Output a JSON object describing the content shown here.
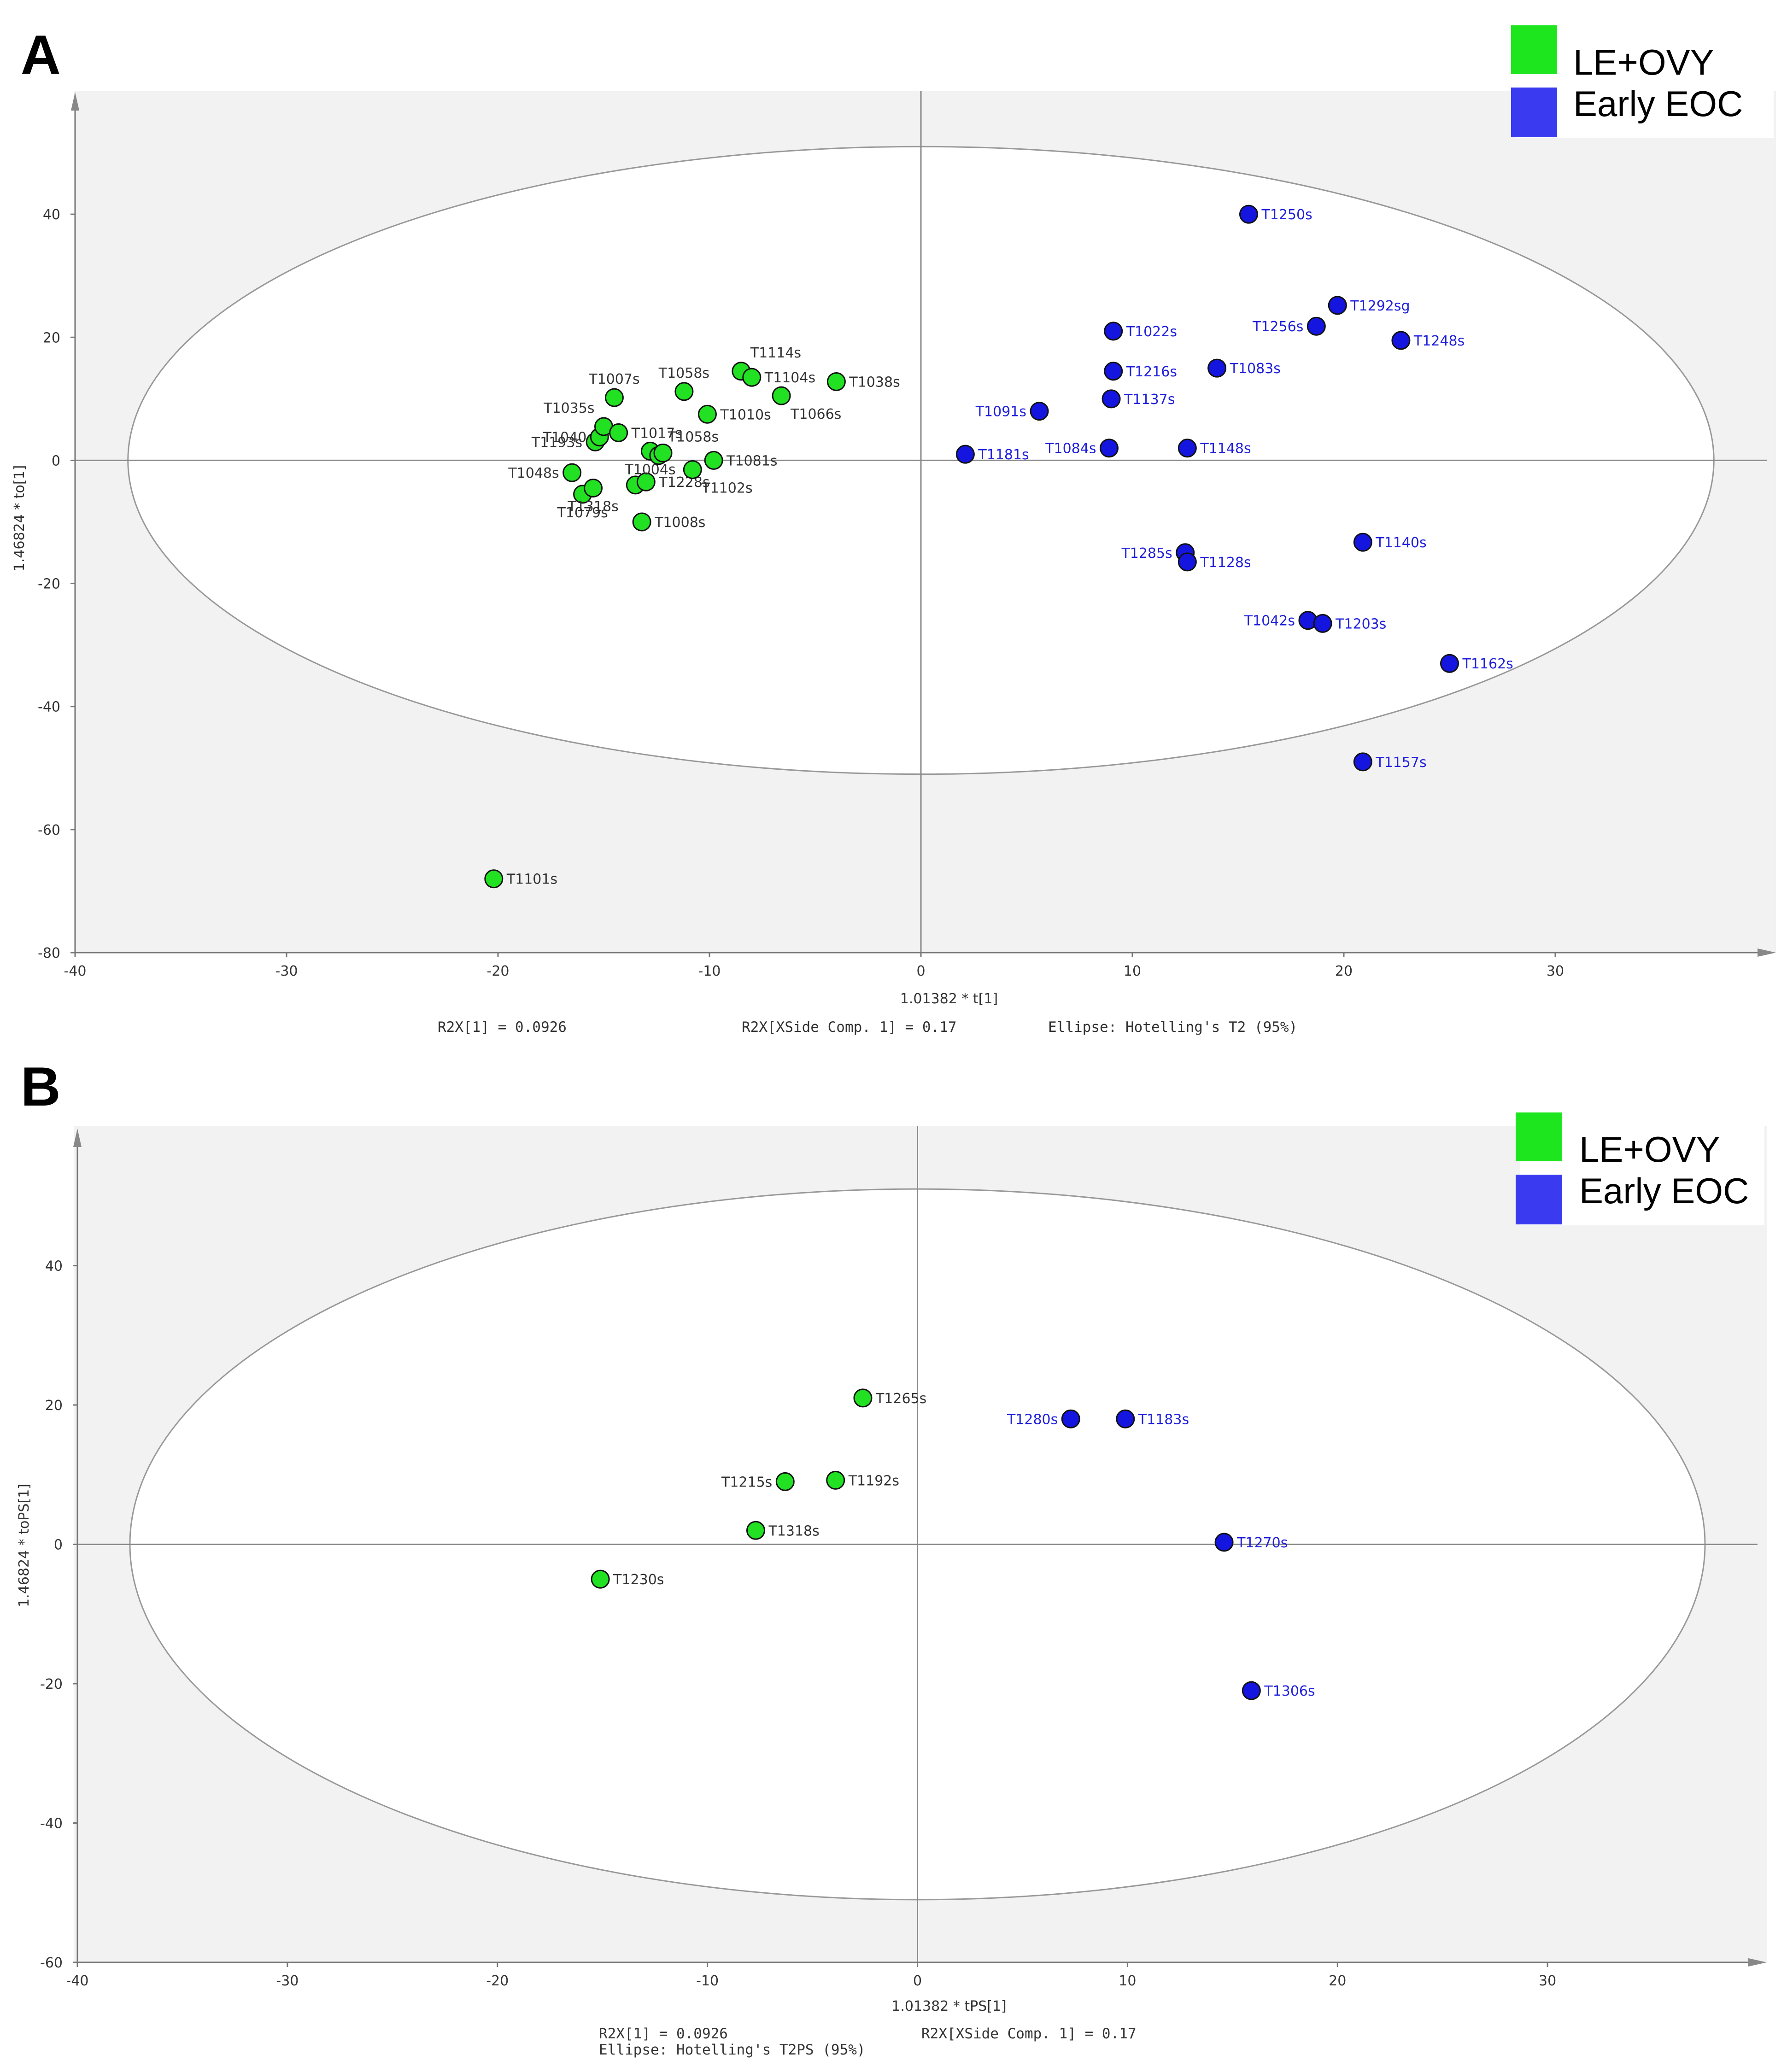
{
  "legend": {
    "items": [
      {
        "label": "LE+OVY",
        "color": "#1ee61e"
      },
      {
        "label": "Early EOC",
        "color": "#3a3af0"
      }
    ]
  },
  "colors": {
    "group1": "#22e022",
    "group2": "#1515e0",
    "label1": "#333333",
    "label2": "#2020dd",
    "plotbg": "#f2f2f2"
  },
  "chart_data": [
    {
      "panel": "A",
      "type": "scatter",
      "xlabel": "1.01382 * t[1]",
      "ylabel": "1.46824 * to[1]",
      "xlim": [
        -40,
        40
      ],
      "ylim": [
        -80,
        60
      ],
      "xticks": [
        -40,
        -30,
        -20,
        -10,
        0,
        10,
        20,
        30
      ],
      "yticks": [
        -80,
        -60,
        -40,
        -20,
        0,
        20,
        40
      ],
      "ellipse": {
        "rx": 37.5,
        "ry": 51
      },
      "footer": {
        "r2x": "R2X[1] = 0.0926",
        "xside": "R2X[XSide Comp. 1] = 0.17",
        "ellipse": "Ellipse: Hotelling's T2 (95%)"
      },
      "series": [
        {
          "name": "LE+OVY",
          "points": [
            {
              "x": -20.2,
              "y": -68,
              "label": "T1101s",
              "anchor": "right"
            },
            {
              "x": -16.5,
              "y": -2,
              "label": "T1048s",
              "anchor": "left"
            },
            {
              "x": -16,
              "y": -5.5,
              "label": "T1079s",
              "anchor": "below"
            },
            {
              "x": -15.5,
              "y": -4.5,
              "label": "T1318s",
              "anchor": "below"
            },
            {
              "x": -15.4,
              "y": 3,
              "label": "T1193s",
              "anchor": "left"
            },
            {
              "x": -15.2,
              "y": 3.8,
              "label": "T1040",
              "anchor": "left"
            },
            {
              "x": -15,
              "y": 5.5,
              "label": "T1035s",
              "anchor": "upleft"
            },
            {
              "x": -14.5,
              "y": 10.2,
              "label": "T1007s",
              "anchor": "above"
            },
            {
              "x": -14.3,
              "y": 4.5,
              "label": "T1017s",
              "anchor": "right"
            },
            {
              "x": -13.5,
              "y": -4,
              "label": "",
              "anchor": "none"
            },
            {
              "x": -13.2,
              "y": -10,
              "label": "T1008s",
              "anchor": "right"
            },
            {
              "x": -13,
              "y": -3.5,
              "label": "T1228s",
              "anchor": "right"
            },
            {
              "x": -12.8,
              "y": 1.5,
              "label": "T1004s",
              "anchor": "below"
            },
            {
              "x": -12.4,
              "y": 0.8,
              "label": "T1058s",
              "anchor": "upright"
            },
            {
              "x": -12.2,
              "y": 1.2,
              "label": "",
              "anchor": "none"
            },
            {
              "x": -11.2,
              "y": 11.2,
              "label": "T1058s",
              "anchor": "above"
            },
            {
              "x": -10.8,
              "y": -1.5,
              "label": "T1102s",
              "anchor": "belowright"
            },
            {
              "x": -10.1,
              "y": 7.5,
              "label": "T1010s",
              "anchor": "right"
            },
            {
              "x": -9.8,
              "y": 0,
              "label": "T1081s",
              "anchor": "right"
            },
            {
              "x": -8.5,
              "y": 14.5,
              "label": "T1114s",
              "anchor": "upright"
            },
            {
              "x": -8,
              "y": 13.5,
              "label": "T1104s",
              "anchor": "right"
            },
            {
              "x": -6.6,
              "y": 10.5,
              "label": "T1066s",
              "anchor": "belowright"
            },
            {
              "x": -4,
              "y": 12.8,
              "label": "T1038s",
              "anchor": "right"
            }
          ]
        },
        {
          "name": "Early EOC",
          "points": [
            {
              "x": 2.1,
              "y": 1,
              "label": "T1181s",
              "anchor": "right"
            },
            {
              "x": 5.6,
              "y": 8,
              "label": "T1091s",
              "anchor": "left"
            },
            {
              "x": 8.9,
              "y": 2,
              "label": "T1084s",
              "anchor": "left"
            },
            {
              "x": 9,
              "y": 10,
              "label": "T1137s",
              "anchor": "right"
            },
            {
              "x": 9.1,
              "y": 21,
              "label": "T1022s",
              "anchor": "right"
            },
            {
              "x": 9.1,
              "y": 14.5,
              "label": "T1216s",
              "anchor": "right"
            },
            {
              "x": 12.5,
              "y": -15,
              "label": "T1285s",
              "anchor": "left"
            },
            {
              "x": 12.6,
              "y": -16.5,
              "label": "T1128s",
              "anchor": "right"
            },
            {
              "x": 12.6,
              "y": 2,
              "label": "T1148s",
              "anchor": "right"
            },
            {
              "x": 14,
              "y": 15,
              "label": "T1083s",
              "anchor": "right"
            },
            {
              "x": 15.5,
              "y": 40,
              "label": "T1250s",
              "anchor": "right"
            },
            {
              "x": 18.3,
              "y": -26,
              "label": "T1042s",
              "anchor": "left"
            },
            {
              "x": 18.7,
              "y": 21.8,
              "label": "T1256s",
              "anchor": "left"
            },
            {
              "x": 19,
              "y": -26.5,
              "label": "T1203s",
              "anchor": "right"
            },
            {
              "x": 19.7,
              "y": 25.2,
              "label": "T1292sg",
              "anchor": "right"
            },
            {
              "x": 20.9,
              "y": -13.3,
              "label": "T1140s",
              "anchor": "right"
            },
            {
              "x": 20.9,
              "y": -49,
              "label": "T1157s",
              "anchor": "right"
            },
            {
              "x": 22.7,
              "y": 19.5,
              "label": "T1248s",
              "anchor": "right"
            },
            {
              "x": 25,
              "y": -33,
              "label": "T1162s",
              "anchor": "right"
            }
          ]
        }
      ]
    },
    {
      "panel": "B",
      "type": "scatter",
      "xlabel": "1.01382 * tPS[1]",
      "ylabel": "1.46824 * toPS[1]",
      "xlim": [
        -40,
        40
      ],
      "ylim": [
        -60,
        60
      ],
      "xticks": [
        -40,
        -30,
        -20,
        -10,
        0,
        10,
        20,
        30
      ],
      "yticks": [
        -60,
        -40,
        -20,
        0,
        20,
        40
      ],
      "ellipse": {
        "rx": 37.5,
        "ry": 51
      },
      "footer": {
        "r2x": "R2X[1] = 0.0926",
        "xside": "R2X[XSide Comp. 1] = 0.17",
        "ellipse": "Ellipse: Hotelling's T2PS (95%)"
      },
      "series": [
        {
          "name": "LE+OVY",
          "points": [
            {
              "x": -15.1,
              "y": -5,
              "label": "T1230s",
              "anchor": "right"
            },
            {
              "x": -7.7,
              "y": 2,
              "label": "T1318s",
              "anchor": "right"
            },
            {
              "x": -6.3,
              "y": 9,
              "label": "T1215s",
              "anchor": "left"
            },
            {
              "x": -3.9,
              "y": 9.2,
              "label": "T1192s",
              "anchor": "right"
            },
            {
              "x": -2.6,
              "y": 21,
              "label": "T1265s",
              "anchor": "right"
            }
          ]
        },
        {
          "name": "Early EOC",
          "points": [
            {
              "x": 7.3,
              "y": 18,
              "label": "T1280s",
              "anchor": "left"
            },
            {
              "x": 9.9,
              "y": 18,
              "label": "T1183s",
              "anchor": "right"
            },
            {
              "x": 14.6,
              "y": 0.3,
              "label": "T1270s",
              "anchor": "right"
            },
            {
              "x": 15.9,
              "y": -21,
              "label": "T1306s",
              "anchor": "right"
            }
          ]
        }
      ]
    }
  ]
}
